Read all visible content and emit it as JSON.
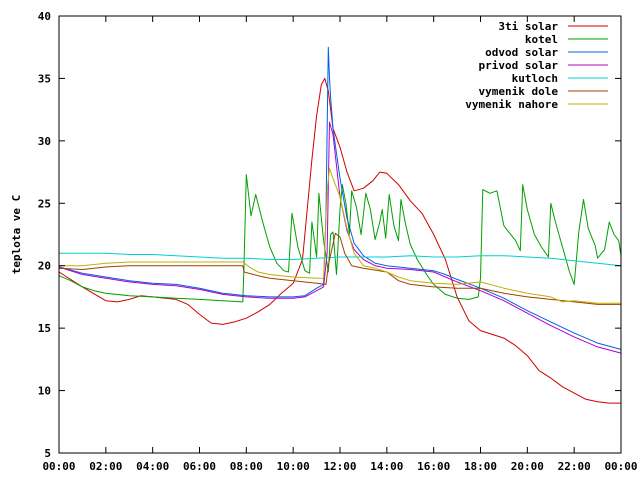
{
  "chart_data": {
    "type": "line",
    "ylabel": "teplota ve C",
    "xlabel": "",
    "title": "",
    "ylim": [
      5,
      40
    ],
    "xlim": [
      0,
      24
    ],
    "grid": false,
    "legend_position": "top-right",
    "y_ticks": [
      5,
      10,
      15,
      20,
      25,
      30,
      35,
      40
    ],
    "x_ticks": [
      {
        "value": 0,
        "label": "00:00"
      },
      {
        "value": 2,
        "label": "02:00"
      },
      {
        "value": 4,
        "label": "04:00"
      },
      {
        "value": 6,
        "label": "06:00"
      },
      {
        "value": 8,
        "label": "08:00"
      },
      {
        "value": 10,
        "label": "10:00"
      },
      {
        "value": 12,
        "label": "12:00"
      },
      {
        "value": 14,
        "label": "14:00"
      },
      {
        "value": 16,
        "label": "16:00"
      },
      {
        "value": 18,
        "label": "18:00"
      },
      {
        "value": 20,
        "label": "20:00"
      },
      {
        "value": 22,
        "label": "22:00"
      },
      {
        "value": 24,
        "label": "00:00"
      }
    ],
    "series": [
      {
        "name": "3ti solar",
        "color": "#d00000",
        "points": [
          [
            0,
            19.5
          ],
          [
            1,
            18.3
          ],
          [
            2,
            17.2
          ],
          [
            2.5,
            17.1
          ],
          [
            3,
            17.3
          ],
          [
            3.5,
            17.6
          ],
          [
            4,
            17.5
          ],
          [
            5,
            17.3
          ],
          [
            5.5,
            16.9
          ],
          [
            6,
            16.1
          ],
          [
            6.5,
            15.4
          ],
          [
            7,
            15.3
          ],
          [
            7.5,
            15.5
          ],
          [
            8,
            15.8
          ],
          [
            8.5,
            16.3
          ],
          [
            9,
            16.9
          ],
          [
            9.5,
            17.8
          ],
          [
            10,
            18.6
          ],
          [
            10.4,
            20.5
          ],
          [
            10.6,
            24.5
          ],
          [
            10.8,
            28.5
          ],
          [
            11,
            32
          ],
          [
            11.2,
            34.5
          ],
          [
            11.35,
            35
          ],
          [
            11.5,
            34
          ],
          [
            11.7,
            31
          ],
          [
            12,
            29.5
          ],
          [
            12.3,
            27.5
          ],
          [
            12.6,
            26
          ],
          [
            13,
            26.2
          ],
          [
            13.4,
            26.8
          ],
          [
            13.7,
            27.5
          ],
          [
            14,
            27.4
          ],
          [
            14.5,
            26.5
          ],
          [
            15,
            25.2
          ],
          [
            15.5,
            24.2
          ],
          [
            16,
            22.5
          ],
          [
            16.5,
            20.5
          ],
          [
            17,
            17.5
          ],
          [
            17.5,
            15.6
          ],
          [
            18,
            14.8
          ],
          [
            18.5,
            14.5
          ],
          [
            19,
            14.2
          ],
          [
            19.5,
            13.6
          ],
          [
            20,
            12.8
          ],
          [
            20.5,
            11.6
          ],
          [
            21,
            11
          ],
          [
            21.5,
            10.3
          ],
          [
            22,
            9.8
          ],
          [
            22.5,
            9.3
          ],
          [
            23,
            9.1
          ],
          [
            23.5,
            9
          ],
          [
            24,
            9
          ]
        ]
      },
      {
        "name": "kotel",
        "color": "#00a000",
        "points": [
          [
            0,
            19.2
          ],
          [
            0.5,
            18.8
          ],
          [
            1,
            18.3
          ],
          [
            1.5,
            18
          ],
          [
            2,
            17.8
          ],
          [
            3,
            17.6
          ],
          [
            4,
            17.5
          ],
          [
            5,
            17.4
          ],
          [
            6,
            17.3
          ],
          [
            7,
            17.2
          ],
          [
            7.85,
            17.1
          ],
          [
            7.9,
            20
          ],
          [
            8,
            27.3
          ],
          [
            8.2,
            24
          ],
          [
            8.4,
            25.7
          ],
          [
            8.7,
            23.5
          ],
          [
            9,
            21.5
          ],
          [
            9.3,
            20.2
          ],
          [
            9.6,
            19.6
          ],
          [
            9.8,
            19.5
          ],
          [
            9.95,
            24.2
          ],
          [
            10.2,
            21.5
          ],
          [
            10.5,
            19.6
          ],
          [
            10.7,
            19.4
          ],
          [
            10.8,
            23.5
          ],
          [
            11,
            20.7
          ],
          [
            11.1,
            25.8
          ],
          [
            11.3,
            22
          ],
          [
            11.5,
            19.5
          ],
          [
            11.6,
            22.5
          ],
          [
            11.7,
            22.7
          ],
          [
            11.85,
            19.3
          ],
          [
            12,
            24.5
          ],
          [
            12.1,
            26.5
          ],
          [
            12.25,
            25
          ],
          [
            12.4,
            22.5
          ],
          [
            12.5,
            26
          ],
          [
            12.7,
            24.7
          ],
          [
            12.9,
            22.5
          ],
          [
            13.1,
            25.8
          ],
          [
            13.3,
            24.5
          ],
          [
            13.5,
            22.1
          ],
          [
            13.7,
            23.5
          ],
          [
            13.8,
            24.5
          ],
          [
            13.95,
            22.2
          ],
          [
            14.1,
            25.7
          ],
          [
            14.3,
            23.2
          ],
          [
            14.5,
            22
          ],
          [
            14.6,
            25.3
          ],
          [
            14.8,
            23.3
          ],
          [
            15,
            21.7
          ],
          [
            15.3,
            20.5
          ],
          [
            15.7,
            19.3
          ],
          [
            16,
            18.5
          ],
          [
            16.5,
            17.7
          ],
          [
            17,
            17.4
          ],
          [
            17.5,
            17.3
          ],
          [
            17.9,
            17.5
          ],
          [
            18,
            19
          ],
          [
            18.1,
            26.1
          ],
          [
            18.4,
            25.8
          ],
          [
            18.7,
            26
          ],
          [
            19,
            23.2
          ],
          [
            19.5,
            22
          ],
          [
            19.7,
            21.2
          ],
          [
            19.8,
            26.5
          ],
          [
            20,
            24.5
          ],
          [
            20.3,
            22.5
          ],
          [
            20.6,
            21.5
          ],
          [
            20.9,
            20.7
          ],
          [
            21,
            25
          ],
          [
            21.2,
            23.5
          ],
          [
            21.5,
            21.5
          ],
          [
            21.8,
            19.5
          ],
          [
            22,
            18.5
          ],
          [
            22.2,
            22.7
          ],
          [
            22.4,
            25.3
          ],
          [
            22.6,
            23
          ],
          [
            22.9,
            21.6
          ],
          [
            23,
            20.6
          ],
          [
            23.3,
            21.3
          ],
          [
            23.5,
            23.5
          ],
          [
            23.7,
            22.5
          ],
          [
            23.9,
            22
          ],
          [
            24,
            20.8
          ]
        ]
      },
      {
        "name": "odvod solar",
        "color": "#0060e0",
        "points": [
          [
            0,
            19.9
          ],
          [
            1,
            19.4
          ],
          [
            2,
            19.1
          ],
          [
            3,
            18.8
          ],
          [
            4,
            18.6
          ],
          [
            5,
            18.5
          ],
          [
            6,
            18.2
          ],
          [
            7,
            17.8
          ],
          [
            8,
            17.6
          ],
          [
            9,
            17.5
          ],
          [
            10,
            17.5
          ],
          [
            10.5,
            17.6
          ],
          [
            11,
            18.2
          ],
          [
            11.3,
            18.5
          ],
          [
            11.4,
            24.2
          ],
          [
            11.5,
            37.5
          ],
          [
            11.55,
            35
          ],
          [
            11.6,
            33.5
          ],
          [
            11.7,
            31
          ],
          [
            12,
            27
          ],
          [
            12.3,
            23.8
          ],
          [
            12.6,
            21.8
          ],
          [
            13,
            20.8
          ],
          [
            13.5,
            20.2
          ],
          [
            14,
            20
          ],
          [
            15,
            19.8
          ],
          [
            16,
            19.6
          ],
          [
            16.5,
            19.3
          ],
          [
            17,
            18.9
          ],
          [
            18,
            18.2
          ],
          [
            19,
            17.4
          ],
          [
            20,
            16.4
          ],
          [
            21,
            15.5
          ],
          [
            22,
            14.6
          ],
          [
            23,
            13.8
          ],
          [
            24,
            13.3
          ]
        ]
      },
      {
        "name": "privod solar",
        "color": "#b000d0",
        "points": [
          [
            0,
            19.9
          ],
          [
            1,
            19.3
          ],
          [
            2,
            19
          ],
          [
            3,
            18.7
          ],
          [
            4,
            18.5
          ],
          [
            5,
            18.4
          ],
          [
            6,
            18.1
          ],
          [
            7,
            17.7
          ],
          [
            8,
            17.5
          ],
          [
            9,
            17.4
          ],
          [
            10,
            17.4
          ],
          [
            10.5,
            17.5
          ],
          [
            11,
            18
          ],
          [
            11.3,
            18.3
          ],
          [
            11.45,
            21
          ],
          [
            11.55,
            31.5
          ],
          [
            11.7,
            30.5
          ],
          [
            12,
            25.5
          ],
          [
            12.3,
            22.8
          ],
          [
            12.6,
            21.3
          ],
          [
            13,
            20.5
          ],
          [
            13.5,
            20
          ],
          [
            14,
            19.8
          ],
          [
            15,
            19.7
          ],
          [
            16,
            19.5
          ],
          [
            16.5,
            19.1
          ],
          [
            17,
            18.7
          ],
          [
            18,
            18
          ],
          [
            19,
            17.2
          ],
          [
            20,
            16.2
          ],
          [
            21,
            15.2
          ],
          [
            22,
            14.3
          ],
          [
            23,
            13.5
          ],
          [
            24,
            13
          ]
        ]
      },
      {
        "name": "kutloch",
        "color": "#00d0d0",
        "points": [
          [
            0,
            21
          ],
          [
            1,
            21
          ],
          [
            2,
            21
          ],
          [
            3,
            20.9
          ],
          [
            4,
            20.9
          ],
          [
            5,
            20.8
          ],
          [
            6,
            20.7
          ],
          [
            7,
            20.6
          ],
          [
            8,
            20.6
          ],
          [
            9,
            20.5
          ],
          [
            10,
            20.5
          ],
          [
            11,
            20.6
          ],
          [
            12,
            20.7
          ],
          [
            13,
            20.7
          ],
          [
            14,
            20.7
          ],
          [
            15,
            20.8
          ],
          [
            16,
            20.7
          ],
          [
            17,
            20.7
          ],
          [
            18,
            20.8
          ],
          [
            19,
            20.8
          ],
          [
            20,
            20.7
          ],
          [
            21,
            20.6
          ],
          [
            22,
            20.4
          ],
          [
            23,
            20.2
          ],
          [
            24,
            20
          ]
        ]
      },
      {
        "name": "vymenik dole",
        "color": "#a04000",
        "points": [
          [
            0,
            19.8
          ],
          [
            1,
            19.7
          ],
          [
            2,
            19.9
          ],
          [
            3,
            20
          ],
          [
            4,
            20
          ],
          [
            5,
            20
          ],
          [
            6,
            20
          ],
          [
            7,
            20
          ],
          [
            7.85,
            20
          ],
          [
            7.9,
            19.5
          ],
          [
            8.5,
            19.2
          ],
          [
            9,
            19
          ],
          [
            10,
            18.8
          ],
          [
            11,
            18.6
          ],
          [
            11.4,
            18.5
          ],
          [
            11.5,
            20
          ],
          [
            11.8,
            22.6
          ],
          [
            12,
            22.3
          ],
          [
            12.2,
            21
          ],
          [
            12.5,
            20
          ],
          [
            13,
            19.8
          ],
          [
            14,
            19.5
          ],
          [
            14.5,
            18.8
          ],
          [
            15,
            18.5
          ],
          [
            16,
            18.3
          ],
          [
            17,
            18.2
          ],
          [
            18,
            18.2
          ],
          [
            19,
            17.8
          ],
          [
            20,
            17.5
          ],
          [
            21,
            17.3
          ],
          [
            22,
            17.1
          ],
          [
            23,
            16.9
          ],
          [
            24,
            16.9
          ]
        ]
      },
      {
        "name": "vymenik nahore",
        "color": "#c0b000",
        "points": [
          [
            0,
            20
          ],
          [
            1,
            20
          ],
          [
            2,
            20.2
          ],
          [
            3,
            20.3
          ],
          [
            4,
            20.3
          ],
          [
            5,
            20.3
          ],
          [
            6,
            20.3
          ],
          [
            7,
            20.3
          ],
          [
            7.85,
            20.3
          ],
          [
            8.2,
            19.8
          ],
          [
            8.5,
            19.5
          ],
          [
            9,
            19.3
          ],
          [
            10,
            19.1
          ],
          [
            11,
            19
          ],
          [
            11.3,
            19
          ],
          [
            11.45,
            26
          ],
          [
            11.55,
            27.8
          ],
          [
            11.7,
            27
          ],
          [
            12,
            25.5
          ],
          [
            12.3,
            23
          ],
          [
            12.6,
            21
          ],
          [
            13,
            20
          ],
          [
            13.5,
            19.8
          ],
          [
            14,
            19.5
          ],
          [
            14.5,
            19.1
          ],
          [
            15,
            18.8
          ],
          [
            16,
            18.6
          ],
          [
            17,
            18.5
          ],
          [
            18,
            18.7
          ],
          [
            19,
            18.2
          ],
          [
            20,
            17.8
          ],
          [
            21,
            17.5
          ],
          [
            21.5,
            17.1
          ],
          [
            22,
            17.2
          ],
          [
            23,
            17
          ],
          [
            24,
            17
          ]
        ]
      }
    ]
  }
}
